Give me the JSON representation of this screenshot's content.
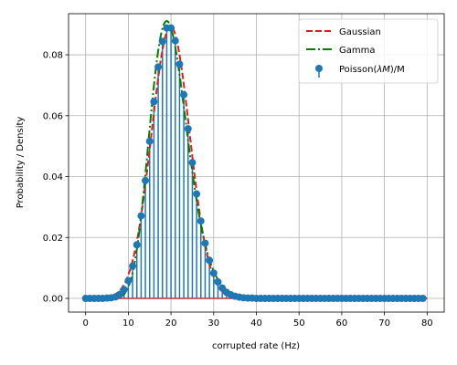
{
  "chart_data": {
    "type": "line",
    "xlabel": "corrupted rate (Hz)",
    "ylabel": "Probability / Density",
    "xlim": [
      -4,
      84
    ],
    "ylim": [
      -0.0045,
      0.0935
    ],
    "xticks": [
      0,
      10,
      20,
      30,
      40,
      50,
      60,
      70,
      80
    ],
    "yticks": [
      0.0,
      0.02,
      0.04,
      0.06,
      0.08
    ],
    "ytick_labels": [
      "0.00",
      "0.02",
      "0.04",
      "0.06",
      "0.08"
    ],
    "grid": true,
    "legend_position": "top-right",
    "series": [
      {
        "name": "Gaussian",
        "kind": "line",
        "style": "dashed",
        "color": "#e41a1c",
        "mean": 19.9,
        "sd": 4.47,
        "peak": 0.0893
      },
      {
        "name": "Gamma",
        "kind": "line",
        "style": "dashdot",
        "color": "#008000",
        "shape": 20,
        "scale": 1.0,
        "peak": 0.0911
      },
      {
        "name": "Poisson(λM)/M",
        "name_parts": [
          "Poisson(",
          "λM",
          ")/M"
        ],
        "kind": "stem",
        "color": "#1f77b4",
        "x": [
          0,
          1,
          2,
          3,
          4,
          5,
          6,
          7,
          8,
          9,
          10,
          11,
          12,
          13,
          14,
          15,
          16,
          17,
          18,
          19,
          20,
          21,
          22,
          23,
          24,
          25,
          26,
          27,
          28,
          29,
          30,
          31,
          32,
          33,
          34,
          35,
          36,
          37,
          38,
          39,
          40,
          41,
          42,
          43,
          44,
          45,
          46,
          47,
          48,
          49,
          50,
          51,
          52,
          53,
          54,
          55,
          56,
          57,
          58,
          59,
          60,
          61,
          62,
          63,
          64,
          65,
          66,
          67,
          68,
          69,
          70,
          71,
          72,
          73,
          74,
          75,
          76,
          77,
          78,
          79
        ],
        "y": [
          0,
          0,
          0,
          0,
          0,
          0.0001,
          0.0002,
          0.0005,
          0.0013,
          0.0029,
          0.0058,
          0.0106,
          0.0176,
          0.0271,
          0.0387,
          0.0516,
          0.0646,
          0.076,
          0.0844,
          0.0888,
          0.0888,
          0.0846,
          0.0769,
          0.0669,
          0.0557,
          0.0446,
          0.0343,
          0.0254,
          0.0181,
          0.0125,
          0.0083,
          0.0054,
          0.0034,
          0.002,
          0.0012,
          0.0007,
          0.0004,
          0.0002,
          0.0001,
          0.0001,
          0,
          0,
          0,
          0,
          0,
          0,
          0,
          0,
          0,
          0,
          0,
          0,
          0,
          0,
          0,
          0,
          0,
          0,
          0,
          0,
          0,
          0,
          0,
          0,
          0,
          0,
          0,
          0,
          0,
          0,
          0,
          0,
          0,
          0,
          0,
          0,
          0,
          0,
          0,
          0
        ]
      }
    ]
  }
}
